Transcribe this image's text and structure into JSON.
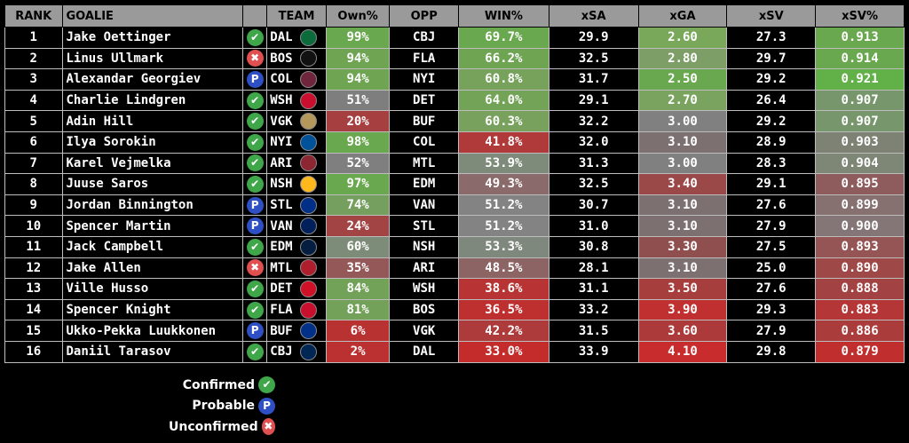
{
  "headers": [
    "RANK",
    "GOALIE",
    "",
    "TEAM",
    "Own%",
    "OPP",
    "WIN%",
    "xSA",
    "xGA",
    "xSV",
    "xSV%"
  ],
  "status_icons": {
    "confirmed": {
      "glyph": "✔",
      "color": "#3fa64a"
    },
    "probable": {
      "glyph": "P",
      "color": "#2f4fc4"
    },
    "unconfirmed": {
      "glyph": "✖",
      "color": "#e05050"
    }
  },
  "rows": [
    {
      "rank": "1",
      "goalie": "Jake Oettinger",
      "status": "confirmed",
      "team": "DAL",
      "logo_color": "#0b6b3a",
      "own": "99%",
      "own_color": "#6aa84f",
      "opp": "CBJ",
      "win": "69.7%",
      "win_color": "#6aa84f",
      "xsa": "29.9",
      "xga": "2.60",
      "xga_color": "#7aa85a",
      "xsv": "27.3",
      "xsvp": "0.913",
      "xsvp_color": "#6aa84f"
    },
    {
      "rank": "2",
      "goalie": "Linus Ullmark",
      "status": "unconfirmed",
      "team": "BOS",
      "logo_color": "#111111",
      "own": "94%",
      "own_color": "#6fa453",
      "opp": "FLA",
      "win": "66.2%",
      "win_color": "#6fa453",
      "xsa": "32.5",
      "xga": "2.80",
      "xga_color": "#7e9e68",
      "xsv": "29.7",
      "xsvp": "0.914",
      "xsvp_color": "#6aa84f"
    },
    {
      "rank": "3",
      "goalie": "Alexandar Georgiev",
      "status": "probable",
      "team": "COL",
      "logo_color": "#6f263d",
      "own": "94%",
      "own_color": "#6fa453",
      "opp": "NYI",
      "win": "60.8%",
      "win_color": "#76a25c",
      "xsa": "31.7",
      "xga": "2.50",
      "xga_color": "#6aa84f",
      "xsv": "29.2",
      "xsvp": "0.921",
      "xsvp_color": "#62b048"
    },
    {
      "rank": "4",
      "goalie": "Charlie Lindgren",
      "status": "confirmed",
      "team": "WSH",
      "logo_color": "#c8102e",
      "own": "51%",
      "own_color": "#7e7e7e",
      "opp": "DET",
      "win": "64.0%",
      "win_color": "#72a357",
      "xsa": "29.1",
      "xga": "2.70",
      "xga_color": "#7aa35f",
      "xsv": "26.4",
      "xsvp": "0.907",
      "xsvp_color": "#78966c"
    },
    {
      "rank": "5",
      "goalie": "Adin Hill",
      "status": "confirmed",
      "team": "VGK",
      "logo_color": "#b4975a",
      "own": "20%",
      "own_color": "#a64040",
      "opp": "BUF",
      "win": "60.3%",
      "win_color": "#77a15d",
      "xsa": "32.2",
      "xga": "3.00",
      "xga_color": "#808080",
      "xsv": "29.2",
      "xsvp": "0.907",
      "xsvp_color": "#78966c"
    },
    {
      "rank": "6",
      "goalie": "Ilya Sorokin",
      "status": "confirmed",
      "team": "NYI",
      "logo_color": "#00539b",
      "own": "98%",
      "own_color": "#6aa84f",
      "opp": "COL",
      "win": "41.8%",
      "win_color": "#b03a3a",
      "xsa": "32.0",
      "xga": "3.10",
      "xga_color": "#7c7070",
      "xsv": "28.9",
      "xsvp": "0.903",
      "xsvp_color": "#7e8274"
    },
    {
      "rank": "7",
      "goalie": "Karel Vejmelka",
      "status": "confirmed",
      "team": "ARI",
      "logo_color": "#8c2633",
      "own": "52%",
      "own_color": "#7f7f7f",
      "opp": "MTL",
      "win": "53.9%",
      "win_color": "#7e8a7a",
      "xsa": "31.3",
      "xga": "3.00",
      "xga_color": "#808080",
      "xsv": "28.3",
      "xsvp": "0.904",
      "xsvp_color": "#7e8676"
    },
    {
      "rank": "8",
      "goalie": "Juuse Saros",
      "status": "confirmed",
      "team": "NSH",
      "logo_color": "#ffb81c",
      "own": "97%",
      "own_color": "#6aa84f",
      "opp": "EDM",
      "win": "49.3%",
      "win_color": "#8a6a6a",
      "xsa": "32.5",
      "xga": "3.40",
      "xga_color": "#9a4848",
      "xsv": "29.1",
      "xsvp": "0.895",
      "xsvp_color": "#8e5c5c"
    },
    {
      "rank": "9",
      "goalie": "Jordan Binnington",
      "status": "probable",
      "team": "STL",
      "logo_color": "#002f87",
      "own": "74%",
      "own_color": "#759f5f",
      "opp": "VAN",
      "win": "51.2%",
      "win_color": "#838383",
      "xsa": "30.7",
      "xga": "3.10",
      "xga_color": "#7c7070",
      "xsv": "27.6",
      "xsvp": "0.899",
      "xsvp_color": "#867070"
    },
    {
      "rank": "10",
      "goalie": "Spencer Martin",
      "status": "probable",
      "team": "VAN",
      "logo_color": "#00205b",
      "own": "24%",
      "own_color": "#a24444",
      "opp": "STL",
      "win": "51.2%",
      "win_color": "#838383",
      "xsa": "31.0",
      "xga": "3.10",
      "xga_color": "#7c7070",
      "xsv": "27.9",
      "xsvp": "0.900",
      "xsvp_color": "#847676"
    },
    {
      "rank": "11",
      "goalie": "Jack Campbell",
      "status": "confirmed",
      "team": "EDM",
      "logo_color": "#041e42",
      "own": "60%",
      "own_color": "#7c8c78",
      "opp": "NSH",
      "win": "53.3%",
      "win_color": "#7f887c",
      "xsa": "30.8",
      "xga": "3.30",
      "xga_color": "#904f4f",
      "xsv": "27.5",
      "xsvp": "0.893",
      "xsvp_color": "#955555"
    },
    {
      "rank": "12",
      "goalie": "Jake Allen",
      "status": "unconfirmed",
      "team": "MTL",
      "logo_color": "#af1e2d",
      "own": "35%",
      "own_color": "#955858",
      "opp": "ARI",
      "win": "48.5%",
      "win_color": "#8c6464",
      "xsa": "28.1",
      "xga": "3.10",
      "xga_color": "#7c7070",
      "xsv": "25.0",
      "xsvp": "0.890",
      "xsvp_color": "#9e4848"
    },
    {
      "rank": "13",
      "goalie": "Ville Husso",
      "status": "confirmed",
      "team": "DET",
      "logo_color": "#ce1126",
      "own": "84%",
      "own_color": "#72a258",
      "opp": "WSH",
      "win": "38.6%",
      "win_color": "#b83434",
      "xsa": "31.1",
      "xga": "3.50",
      "xga_color": "#a63e3e",
      "xsv": "27.6",
      "xsvp": "0.888",
      "xsvp_color": "#a34242"
    },
    {
      "rank": "14",
      "goalie": "Spencer Knight",
      "status": "confirmed",
      "team": "FLA",
      "logo_color": "#c8102e",
      "own": "81%",
      "own_color": "#73a159",
      "opp": "BOS",
      "win": "36.5%",
      "win_color": "#be3030",
      "xsa": "33.2",
      "xga": "3.90",
      "xga_color": "#c03030",
      "xsv": "29.3",
      "xsvp": "0.883",
      "xsvp_color": "#b43636"
    },
    {
      "rank": "15",
      "goalie": "Ukko-Pekka Luukkonen",
      "status": "probable",
      "team": "BUF",
      "logo_color": "#003087",
      "own": "6%",
      "own_color": "#b83232",
      "opp": "VGK",
      "win": "42.2%",
      "win_color": "#ae3b3b",
      "xsa": "31.5",
      "xga": "3.60",
      "xga_color": "#ac3a3a",
      "xsv": "27.9",
      "xsvp": "0.886",
      "xsvp_color": "#aa3c3c"
    },
    {
      "rank": "16",
      "goalie": "Daniil Tarasov",
      "status": "confirmed",
      "team": "CBJ",
      "logo_color": "#002654",
      "own": "2%",
      "own_color": "#bb3030",
      "opp": "DAL",
      "win": "33.0%",
      "win_color": "#c42c2c",
      "xsa": "33.9",
      "xga": "4.10",
      "xga_color": "#c82c2c",
      "xsv": "29.8",
      "xsvp": "0.879",
      "xsvp_color": "#c02e2e"
    }
  ],
  "legend": [
    {
      "label": "Confirmed",
      "status": "confirmed"
    },
    {
      "label": "Probable",
      "status": "probable"
    },
    {
      "label": "Unconfirmed",
      "status": "unconfirmed"
    }
  ]
}
